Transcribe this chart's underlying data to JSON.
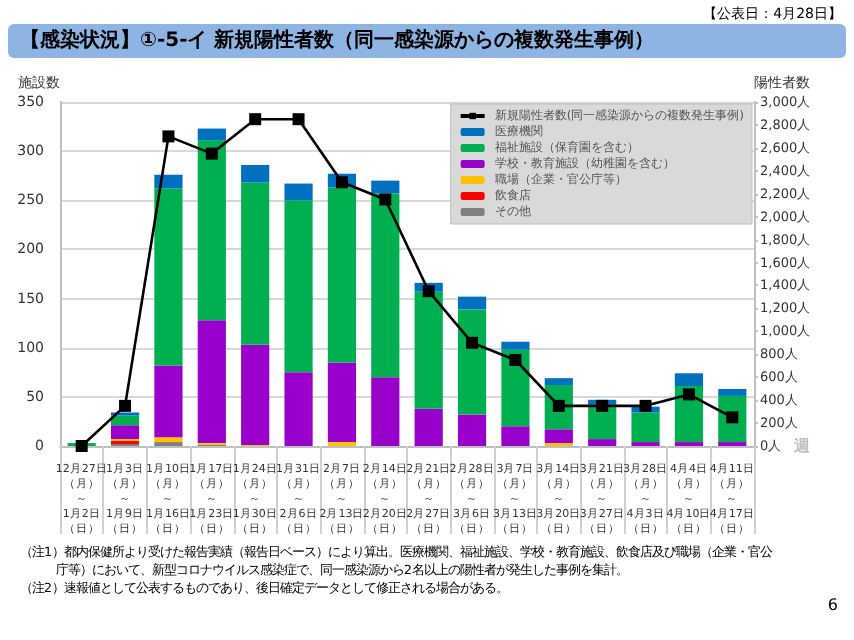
{
  "chart_data": {
    "type": "bar",
    "stacked": true,
    "title": "【感染状況】①-5-イ 新規陽性者数（同一感染源からの複数発生事例）",
    "ylabel": "施設数",
    "y2label": "陽性者数",
    "xlabel": "週",
    "annotations": [
      "【公表日：4月28日】",
      "（注1）都内保健所より受けた報告実績（報告日ベース）により算出。医療機関、福祉施設、学校・教育施設、飲食店及び職場（企業・官公庁等）において、新型コロナウイルス感染症で、同一感染源から2名以上の陽性者が発生した事例を集計。",
      "（注2）速報値として公表するものであり、後日確定データとして修正される場合がある。",
      "6"
    ],
    "categories": [
      "12月27日（月）～1月2日（日）",
      "1月3日（月）～1月9日（日）",
      "1月10日（月）～1月16日（日）",
      "1月17日（月）～1月23日（日）",
      "1月24日（月）～1月30日（日）",
      "1月31日（月）～2月6日（日）",
      "2月7日（月）～2月13日（日）",
      "2月14日（月）～2月20日（日）",
      "2月21日（月）～2月27日（日）",
      "2月28日（月）～3月6日（日）",
      "3月7日（月）～3月13日（日）",
      "3月14日（月）～3月20日（日）",
      "3月21日（月）～3月27日（日）",
      "3月28日（月）～4月3日（日）",
      "4月4日（月）～4月10日（日）",
      "4月11日（月）～4月17日（日）"
    ],
    "series": [
      {
        "name": "その他",
        "color": "#808080",
        "values": [
          null,
          2,
          4,
          1,
          0,
          0,
          0,
          0,
          0,
          0,
          0,
          0,
          0,
          0,
          0,
          0
        ]
      },
      {
        "name": "飲食店",
        "color": "#ff0000",
        "values": [
          null,
          3,
          0,
          0,
          0,
          0,
          0,
          0,
          0,
          0,
          0,
          0,
          0,
          0,
          0,
          0
        ]
      },
      {
        "name": "職場（企業・官公庁等）",
        "color": "#ffc000",
        "values": [
          null,
          2,
          5,
          2,
          1,
          0,
          4,
          0,
          0,
          0,
          0,
          3,
          0,
          0,
          0,
          0
        ]
      },
      {
        "name": "学校・教育施設（幼稚園を含む）",
        "color": "#9900cc",
        "values": [
          null,
          14,
          73,
          125,
          102,
          75,
          81,
          70,
          38,
          32,
          20,
          14,
          7,
          4,
          4,
          4
        ]
      },
      {
        "name": "福祉施設（保育園を含む）",
        "color": "#00b050",
        "values": [
          3,
          10,
          180,
          183,
          165,
          175,
          178,
          187,
          119,
          107,
          78,
          45,
          35,
          30,
          57,
          47
        ]
      },
      {
        "name": "医療機関",
        "color": "#0070c0",
        "values": [
          null,
          3,
          14,
          12,
          18,
          17,
          14,
          13,
          9,
          13,
          8,
          7,
          5,
          6,
          13,
          7
        ]
      },
      {
        "name": "新規陽性者数(同一感染源からの複数発生事例)",
        "type": "line",
        "axis": "y2",
        "color": "#000000",
        "marker": "square",
        "values": [
          0,
          350,
          2700,
          2550,
          2850,
          2850,
          2300,
          2150,
          1350,
          900,
          750,
          350,
          350,
          350,
          450,
          250
        ]
      }
    ],
    "ylim": [
      0,
      350
    ],
    "yticks": [
      0,
      50,
      100,
      150,
      200,
      250,
      300,
      350
    ],
    "y2lim": [
      0,
      3000
    ],
    "y2ticks": [
      {
        "value": 0,
        "label": "0人"
      },
      {
        "value": 200,
        "label": "200人"
      },
      {
        "value": 400,
        "label": "400人"
      },
      {
        "value": 600,
        "label": "600人"
      },
      {
        "value": 800,
        "label": "800人"
      },
      {
        "value": 1000,
        "label": "1,000人"
      },
      {
        "value": 1200,
        "label": "1,200人"
      },
      {
        "value": 1400,
        "label": "1,400人"
      },
      {
        "value": 1600,
        "label": "1,600人"
      },
      {
        "value": 1800,
        "label": "1,800人"
      },
      {
        "value": 2000,
        "label": "2,000人"
      },
      {
        "value": 2200,
        "label": "2,200人"
      },
      {
        "value": 2400,
        "label": "2,400人"
      },
      {
        "value": 2600,
        "label": "2,600人"
      },
      {
        "value": 2800,
        "label": "2,800人"
      },
      {
        "value": 3000,
        "label": "3,000人"
      }
    ],
    "grid": "y",
    "legend": "top right"
  }
}
